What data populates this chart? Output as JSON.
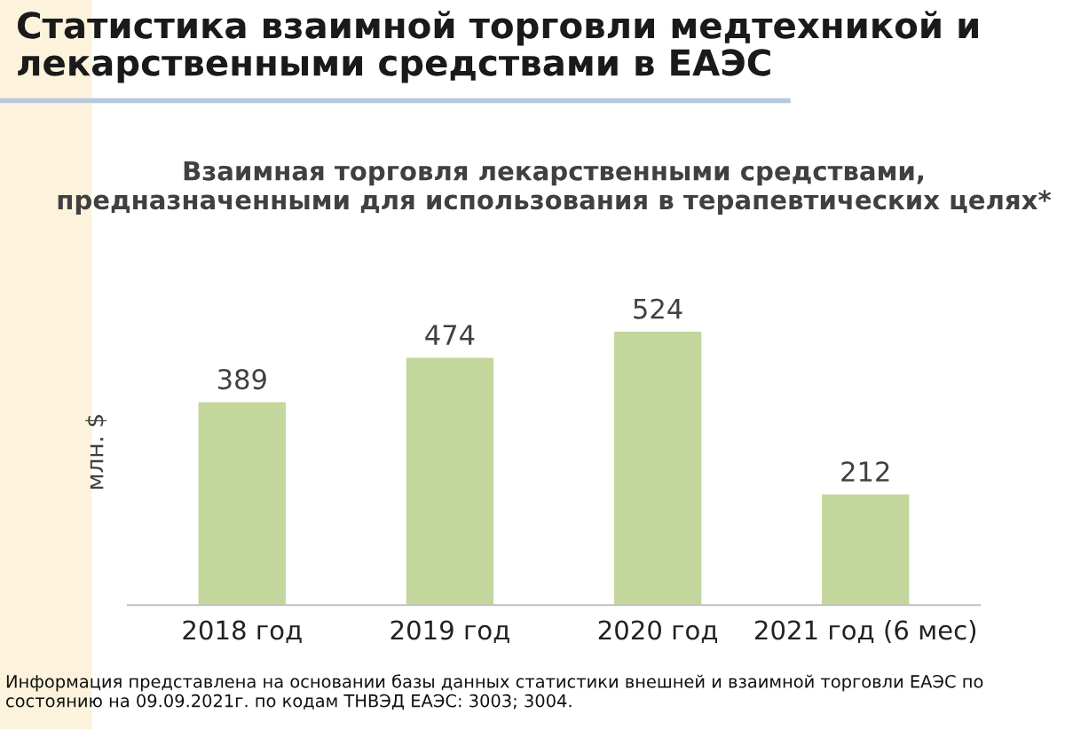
{
  "chart_data": {
    "type": "bar",
    "title": "Статистика взаимной торговли медтехникой и лекарственными средствами в ЕАЭС",
    "subtitle": "Взаимная торговля лекарственными средствами, предназначенными для использования в терапевтических целях*",
    "ylabel": "млн. $",
    "categories": [
      "2018 год",
      "2019 год",
      "2020 год",
      "2021 год (6 мес)"
    ],
    "values": [
      389,
      474,
      524,
      212
    ],
    "color": "#c3d69b",
    "data_labels": true,
    "grid": false,
    "legend": false,
    "annotations": [
      "Информация представлена на основании базы данных статистики внешней и взаимной торговли ЕАЭС по состоянию на 09.09.2021г. по кодам ТНВЭД ЕАЭС: 3003; 3004."
    ]
  }
}
